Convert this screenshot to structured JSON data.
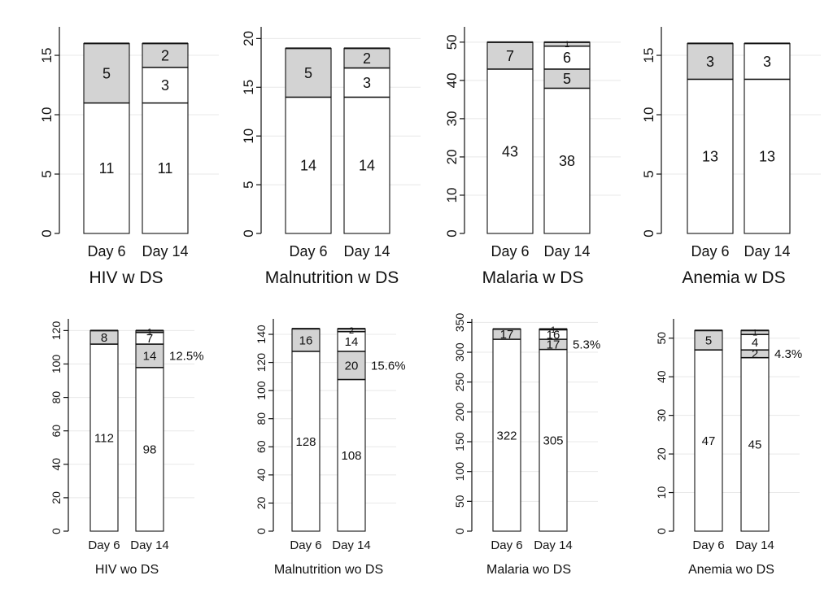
{
  "chart_data": [
    {
      "type": "bar",
      "title": "HIV w DS",
      "categories": [
        "Day 6",
        "Day 14"
      ],
      "ylim": [
        0,
        17.4
      ],
      "yticks": [
        0,
        5,
        10,
        15
      ],
      "bars": [
        {
          "category": "Day 6",
          "segments": [
            {
              "value": 11,
              "label": "11",
              "fill": "white"
            },
            {
              "value": 5,
              "label": "5",
              "fill": "grey"
            }
          ]
        },
        {
          "category": "Day 14",
          "segments": [
            {
              "value": 11,
              "label": "11",
              "fill": "white"
            },
            {
              "value": 3,
              "label": "3",
              "fill": "white"
            },
            {
              "value": 2,
              "label": "2",
              "fill": "grey"
            }
          ]
        }
      ],
      "annotations": []
    },
    {
      "type": "bar",
      "title": "Malnutrition w DS",
      "categories": [
        "Day 6",
        "Day 14"
      ],
      "ylim": [
        0,
        21.2
      ],
      "yticks": [
        0,
        5,
        10,
        15,
        20
      ],
      "bars": [
        {
          "category": "Day 6",
          "segments": [
            {
              "value": 14,
              "label": "14",
              "fill": "white"
            },
            {
              "value": 5,
              "label": "5",
              "fill": "grey"
            }
          ]
        },
        {
          "category": "Day 14",
          "segments": [
            {
              "value": 14,
              "label": "14",
              "fill": "white"
            },
            {
              "value": 3,
              "label": "3",
              "fill": "white"
            },
            {
              "value": 2,
              "label": "2",
              "fill": "grey"
            }
          ]
        }
      ],
      "annotations": []
    },
    {
      "type": "bar",
      "title": "Malaria w DS",
      "categories": [
        "Day 6",
        "Day 14"
      ],
      "ylim": [
        0,
        54
      ],
      "yticks": [
        0,
        10,
        20,
        30,
        40,
        50
      ],
      "bars": [
        {
          "category": "Day 6",
          "segments": [
            {
              "value": 43,
              "label": "43",
              "fill": "white"
            },
            {
              "value": 7,
              "label": "7",
              "fill": "grey"
            }
          ]
        },
        {
          "category": "Day 14",
          "segments": [
            {
              "value": 38,
              "label": "38",
              "fill": "white"
            },
            {
              "value": 5,
              "label": "5",
              "fill": "grey"
            },
            {
              "value": 6,
              "label": "6",
              "fill": "white"
            },
            {
              "value": 1,
              "label": "1",
              "fill": "grey"
            }
          ]
        }
      ],
      "annotations": []
    },
    {
      "type": "bar",
      "title": "Anemia w DS",
      "categories": [
        "Day 6",
        "Day 14"
      ],
      "ylim": [
        0,
        17.4
      ],
      "yticks": [
        0,
        5,
        10,
        15
      ],
      "bars": [
        {
          "category": "Day 6",
          "segments": [
            {
              "value": 13,
              "label": "13",
              "fill": "white"
            },
            {
              "value": 3,
              "label": "3",
              "fill": "grey"
            }
          ]
        },
        {
          "category": "Day 14",
          "segments": [
            {
              "value": 13,
              "label": "13",
              "fill": "white"
            },
            {
              "value": 3,
              "label": "3",
              "fill": "white"
            }
          ]
        }
      ],
      "annotations": []
    },
    {
      "type": "bar",
      "title": "HIV wo DS",
      "categories": [
        "Day 6",
        "Day 14"
      ],
      "ylim": [
        0,
        127
      ],
      "yticks": [
        0,
        20,
        40,
        60,
        80,
        100,
        120
      ],
      "bars": [
        {
          "category": "Day 6",
          "segments": [
            {
              "value": 112,
              "label": "112",
              "fill": "white"
            },
            {
              "value": 8,
              "label": "8",
              "fill": "grey"
            }
          ]
        },
        {
          "category": "Day 14",
          "segments": [
            {
              "value": 98,
              "label": "98",
              "fill": "white"
            },
            {
              "value": 14,
              "label": "14",
              "fill": "grey"
            },
            {
              "value": 7,
              "label": "7",
              "fill": "white"
            },
            {
              "value": 1,
              "label": "1",
              "fill": "grey"
            }
          ]
        }
      ],
      "annotations": [
        {
          "text": "12.5%",
          "bar": "Day 14",
          "segment": 1
        }
      ]
    },
    {
      "type": "bar",
      "title": "Malnutrition wo DS",
      "categories": [
        "Day 6",
        "Day 14"
      ],
      "ylim": [
        0,
        151
      ],
      "yticks": [
        0,
        20,
        40,
        60,
        80,
        100,
        120,
        140
      ],
      "bars": [
        {
          "category": "Day 6",
          "segments": [
            {
              "value": 128,
              "label": "128",
              "fill": "white"
            },
            {
              "value": 16,
              "label": "16",
              "fill": "grey"
            }
          ]
        },
        {
          "category": "Day 14",
          "segments": [
            {
              "value": 108,
              "label": "108",
              "fill": "white"
            },
            {
              "value": 20,
              "label": "20",
              "fill": "grey"
            },
            {
              "value": 14,
              "label": "14",
              "fill": "white"
            },
            {
              "value": 2,
              "label": "2",
              "fill": "grey"
            }
          ]
        }
      ],
      "annotations": [
        {
          "text": "15.6%",
          "bar": "Day 14",
          "segment": 1
        }
      ]
    },
    {
      "type": "bar",
      "title": "Malaria wo DS",
      "categories": [
        "Day 6",
        "Day 14"
      ],
      "ylim": [
        0,
        356
      ],
      "yticks": [
        0,
        50,
        100,
        150,
        200,
        250,
        300,
        350
      ],
      "bars": [
        {
          "category": "Day 6",
          "segments": [
            {
              "value": 322,
              "label": "322",
              "fill": "white"
            },
            {
              "value": 17,
              "label": "17",
              "fill": "grey"
            }
          ]
        },
        {
          "category": "Day 14",
          "segments": [
            {
              "value": 305,
              "label": "305",
              "fill": "white"
            },
            {
              "value": 17,
              "label": "17",
              "fill": "grey"
            },
            {
              "value": 16,
              "label": "16",
              "fill": "white"
            },
            {
              "value": 1,
              "label": "1",
              "fill": "grey"
            }
          ]
        }
      ],
      "annotations": [
        {
          "text": "5.3%",
          "bar": "Day 14",
          "segment": 1
        }
      ]
    },
    {
      "type": "bar",
      "title": "Anemia wo DS",
      "categories": [
        "Day 6",
        "Day 14"
      ],
      "ylim": [
        0,
        55
      ],
      "yticks": [
        0,
        10,
        20,
        30,
        40,
        50
      ],
      "bars": [
        {
          "category": "Day 6",
          "segments": [
            {
              "value": 47,
              "label": "47",
              "fill": "white"
            },
            {
              "value": 5,
              "label": "5",
              "fill": "grey"
            }
          ]
        },
        {
          "category": "Day 14",
          "segments": [
            {
              "value": 45,
              "label": "45",
              "fill": "white"
            },
            {
              "value": 2,
              "label": "2",
              "fill": "grey"
            },
            {
              "value": 4,
              "label": "4",
              "fill": "white"
            },
            {
              "value": 1,
              "label": "1",
              "fill": "grey"
            }
          ]
        }
      ],
      "annotations": [
        {
          "text": "4.3%",
          "bar": "Day 14",
          "segment": 1
        }
      ]
    }
  ],
  "colors": {
    "grey": "#d3d3d3",
    "white": "#ffffff",
    "axis": "#111111",
    "grid": "#e8e8e8"
  }
}
